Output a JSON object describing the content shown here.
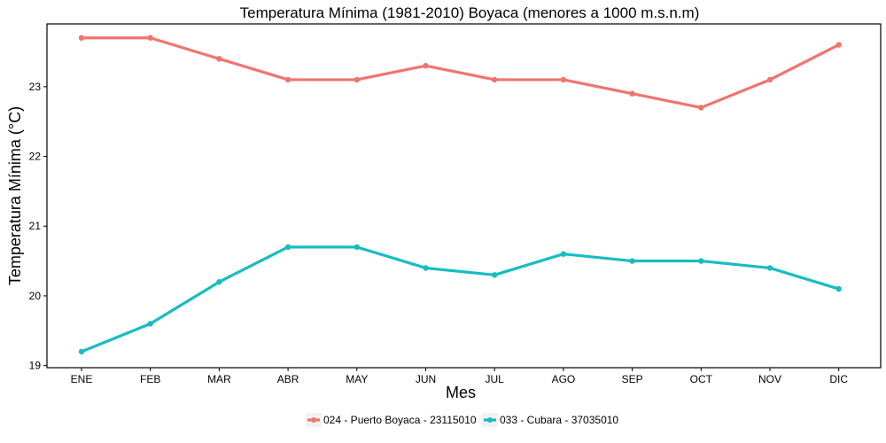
{
  "chart_data": {
    "type": "line",
    "title": "Temperatura Mínima (1981-2010) Boyaca (menores a 1000 m.s.n.m)",
    "xlabel": "Mes",
    "ylabel": "Temperatura Mínima (°C)",
    "categories": [
      "ENE",
      "FEB",
      "MAR",
      "ABR",
      "MAY",
      "JUN",
      "JUL",
      "AGO",
      "SEP",
      "OCT",
      "NOV",
      "DIC"
    ],
    "ylim": [
      18.97,
      23.9
    ],
    "yticks": [
      19,
      20,
      21,
      22,
      23
    ],
    "ytick_labels": [
      "19",
      "20",
      "21",
      "22",
      "23"
    ],
    "grid": false,
    "legend_position": "bottom",
    "series": [
      {
        "name": "024 - Puerto Boyaca - 23115010",
        "color": "#F0746E",
        "values": [
          23.7,
          23.7,
          23.4,
          23.1,
          23.1,
          23.3,
          23.1,
          23.1,
          22.9,
          22.7,
          23.1,
          23.6
        ]
      },
      {
        "name": "033 - Cubara - 37035010",
        "color": "#17BCC3",
        "values": [
          19.2,
          19.6,
          20.2,
          20.7,
          20.7,
          20.4,
          20.3,
          20.6,
          20.5,
          20.5,
          20.4,
          20.1
        ]
      }
    ]
  }
}
